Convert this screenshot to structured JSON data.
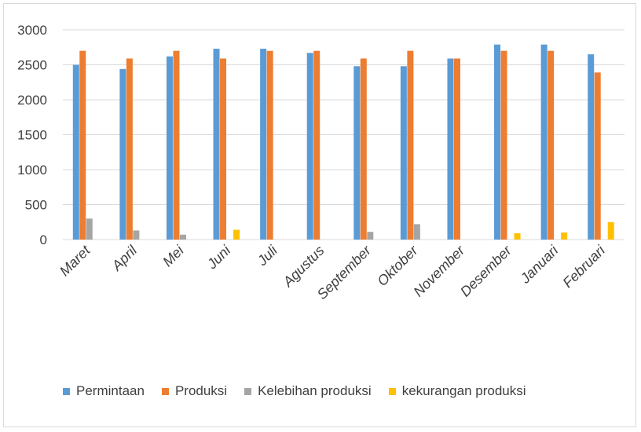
{
  "chart_data": {
    "type": "bar",
    "categories": [
      "Maret",
      "April",
      "Mei",
      "Juni",
      "Juli",
      "Agustus",
      "September",
      "Oktober",
      "November",
      "Desember",
      "Januari",
      "Februari"
    ],
    "series": [
      {
        "name": "Permintaan",
        "color": "#5b9bd5",
        "values": [
          2500,
          2440,
          2620,
          2730,
          2730,
          2670,
          2480,
          2480,
          2590,
          2790,
          2790,
          2650
        ]
      },
      {
        "name": "Produksi",
        "color": "#ed7d31",
        "values": [
          2700,
          2590,
          2700,
          2590,
          2700,
          2700,
          2590,
          2700,
          2590,
          2700,
          2700,
          2390
        ]
      },
      {
        "name": "Kelebihan produksi",
        "color": "#a5a5a5",
        "values": [
          300,
          130,
          70,
          0,
          0,
          0,
          110,
          220,
          0,
          0,
          0,
          0
        ]
      },
      {
        "name": "kekurangan produksi",
        "color": "#ffc000",
        "values": [
          0,
          0,
          0,
          140,
          0,
          0,
          0,
          0,
          0,
          90,
          100,
          250
        ]
      }
    ],
    "yticks": [
      "0",
      "500",
      "1000",
      "1500",
      "2000",
      "2500",
      "3000"
    ],
    "ylim": [
      0,
      3000
    ],
    "grid": true,
    "legend_position": "bottom"
  }
}
